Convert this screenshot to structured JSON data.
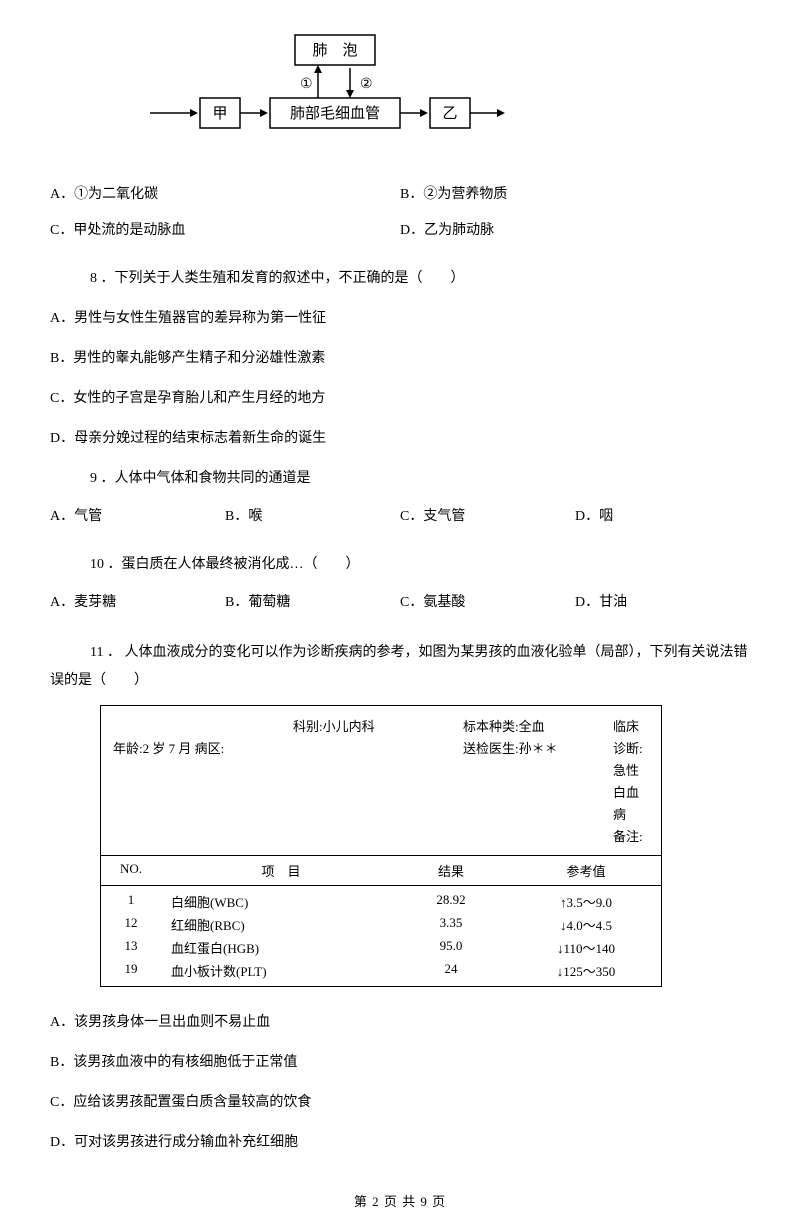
{
  "diagram": {
    "box_top": "肺　泡",
    "box_left": "甲",
    "box_center": "肺部毛细血管",
    "box_right": "乙",
    "label1": "①",
    "label2": "②"
  },
  "q7_options": {
    "A": "A．①为二氧化碳",
    "B": "B．②为营养物质",
    "C": "C．甲处流的是动脉血",
    "D": "D．乙为肺动脉"
  },
  "q8": {
    "stem": "8 ．下列关于人类生殖和发育的叙述中，不正确的是（　　）",
    "A": "A．男性与女性生殖器官的差异称为第一性征",
    "B": "B．男性的睾丸能够产生精子和分泌雄性激素",
    "C": "C．女性的子宫是孕育胎儿和产生月经的地方",
    "D": "D．母亲分娩过程的结束标志着新生命的诞生"
  },
  "q9": {
    "stem": "9 ．人体中气体和食物共同的通道是",
    "A": "A．气管",
    "B": "B．喉",
    "C": "C．支气管",
    "D": "D．咽"
  },
  "q10": {
    "stem": "10 ．蛋白质在人体最终被消化成…（　　）",
    "A": "A．麦芽糖",
    "B": "B．葡萄糖",
    "C": "C．氨基酸",
    "D": "D．甘油"
  },
  "q11": {
    "stem": "11 ． 人体血液成分的变化可以作为诊断疾病的参考，如图为某男孩的血液化验单（局部），下列有关说法错误的是（　　）",
    "A": "A．该男孩身体一旦出血则不易止血",
    "B": "B．该男孩血液中的有核细胞低于正常值",
    "C": "C．应给该男孩配置蛋白质含量较高的饮食",
    "D": "D．可对该男孩进行成分输血补充红细胞"
  },
  "lab": {
    "h1a": "科别:小儿内科",
    "h1b": "标本种类:全血",
    "h1c": "临床诊断:急性白血病",
    "h2a": "年龄:2 岁 7 月 病区:",
    "h2b": "送检医生:孙＊＊",
    "h2c": "备注:",
    "th_no": "NO.",
    "th_item": "项　目",
    "th_res": "结果",
    "th_ref": "参考值",
    "rows": [
      {
        "no": "1",
        "item": "白细胞(WBC)",
        "res": "28.92",
        "ref": "↑3.5～9.0"
      },
      {
        "no": "12",
        "item": "红细胞(RBC)",
        "res": "3.35",
        "ref": "↓4.0～4.5"
      },
      {
        "no": "13",
        "item": "血红蛋白(HGB)",
        "res": "95.0",
        "ref": "↓110～140"
      },
      {
        "no": "19",
        "item": "血小板计数(PLT)",
        "res": "24",
        "ref": "↓125～350"
      }
    ]
  },
  "footer": "第 2 页 共 9 页"
}
